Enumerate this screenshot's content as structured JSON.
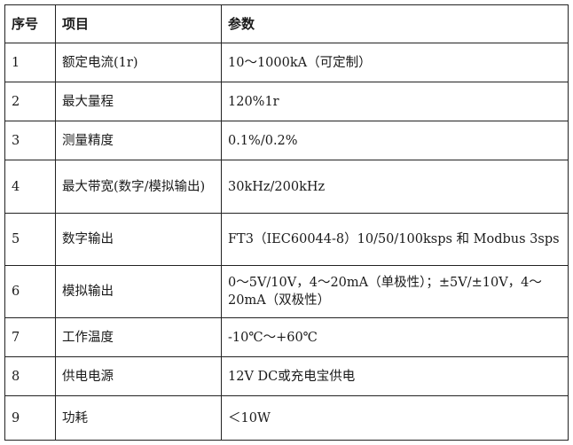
{
  "header": {
    "index": "序号",
    "item": "项目",
    "param": "参数"
  },
  "rows": [
    {
      "index": "1",
      "item": "额定电流(1r)",
      "param": "10～1000kA（可定制）"
    },
    {
      "index": "2",
      "item": "最大量程",
      "param": "120%1r"
    },
    {
      "index": "3",
      "item": "测量精度",
      "param": "0.1%/0.2%"
    },
    {
      "index": "4",
      "item": "最大带宽(数字/模拟输出)",
      "param": "30kHz/200kHz"
    },
    {
      "index": "5",
      "item": "数字输出",
      "param": "FT3（IEC60044-8）10/50/100ksps 和 Modbus 3sps"
    },
    {
      "index": "6",
      "item": "模拟输出",
      "param": "0～5V/10V，4～20mA（单极性）；±5V/±10V，4～20mA（双极性）"
    },
    {
      "index": "7",
      "item": "工作温度",
      "param": "-10℃～+60℃"
    },
    {
      "index": "8",
      "item": "供电电源",
      "param": "12V DC或充电宝供电"
    },
    {
      "index": "9",
      "item": "功耗",
      "param": "＜10W"
    }
  ]
}
